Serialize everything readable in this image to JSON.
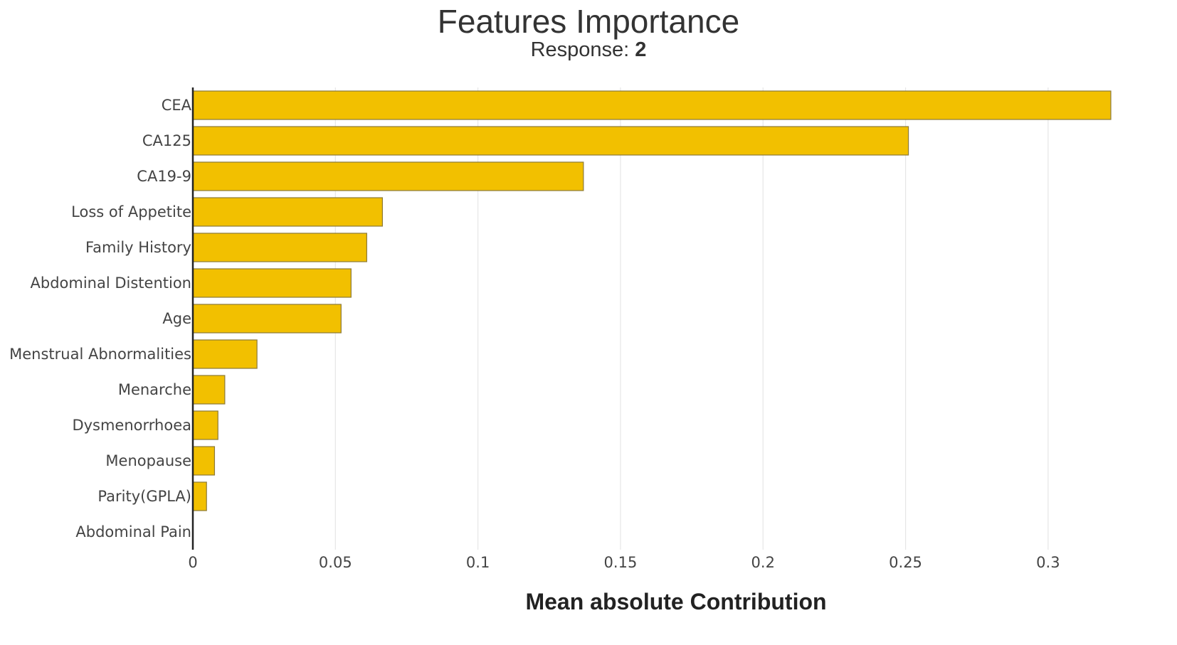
{
  "chart_data": {
    "type": "bar",
    "orientation": "horizontal",
    "title": "Features Importance",
    "subtitle_prefix": "Response:",
    "subtitle_value": "2",
    "xlabel": "Mean absolute Contribution",
    "ylabel": "",
    "xlim": [
      0,
      0.322
    ],
    "x_ticks": [
      0,
      0.05,
      0.1,
      0.15,
      0.2,
      0.25,
      0.3
    ],
    "x_tick_labels": [
      "0",
      "0.05",
      "0.1",
      "0.15",
      "0.2",
      "0.25",
      "0.3"
    ],
    "grid": "vertical",
    "legend": "none",
    "bar_color": "#f2c000",
    "bar_edge_color": "#8c7a3a",
    "categories": [
      "CEA",
      "CA125",
      "CA19-9",
      "Loss of Appetite",
      "Family History",
      "Abdominal Distention",
      "Age",
      "Menstrual Abnormalities",
      "Menarche",
      "Dysmenorrhoea",
      "Menopause",
      "Parity(GPLA)",
      "Abdominal Pain"
    ],
    "values": [
      0.322,
      0.251,
      0.137,
      0.0665,
      0.061,
      0.0555,
      0.052,
      0.0225,
      0.0112,
      0.0088,
      0.0076,
      0.0048,
      0
    ]
  }
}
